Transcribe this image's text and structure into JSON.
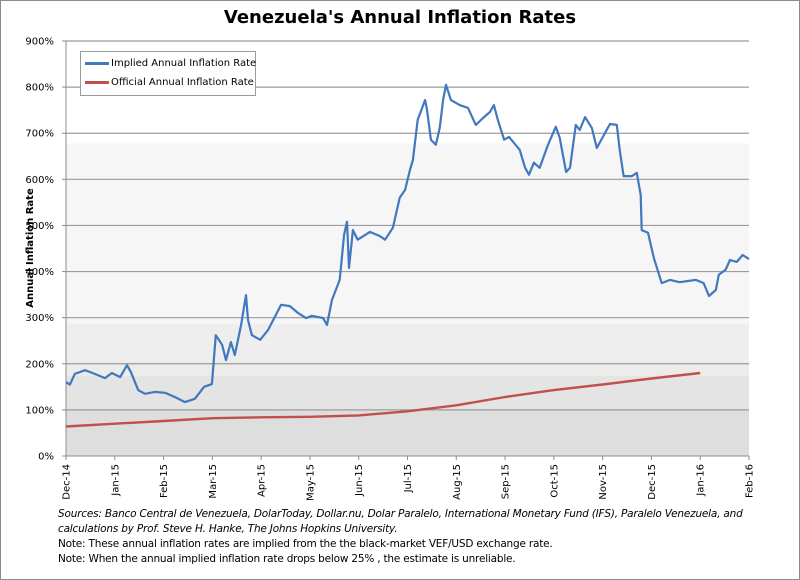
{
  "chart_data": {
    "type": "line",
    "title": "Venezuela's Annual Inflation Rates",
    "xlabel": "",
    "ylabel": "Annual Inflation Rate",
    "ylim": [
      0,
      900
    ],
    "y_ticks": [
      "0%",
      "100%",
      "200%",
      "300%",
      "400%",
      "500%",
      "600%",
      "700%",
      "800%",
      "900%"
    ],
    "y_tick_values": [
      0,
      100,
      200,
      300,
      400,
      500,
      600,
      700,
      800,
      900
    ],
    "x_ticks": [
      "Dec-14",
      "Jan-15",
      "Feb-15",
      "Mar-15",
      "Apr-15",
      "May-15",
      "Jun-15",
      "Jul-15",
      "Aug-15",
      "Sep-15",
      "Oct-15",
      "Nov-15",
      "Dec-15",
      "Jan-16",
      "Feb-16"
    ],
    "xlim_months": [
      0,
      14
    ],
    "grid": true,
    "legend_position": "top-left",
    "series": [
      {
        "name": "Implied Annual Inflation Rate",
        "color": "#4178be",
        "points": [
          [
            0.0,
            160
          ],
          [
            0.08,
            155
          ],
          [
            0.18,
            178
          ],
          [
            0.39,
            186
          ],
          [
            0.59,
            178
          ],
          [
            0.8,
            169
          ],
          [
            0.94,
            180
          ],
          [
            1.11,
            171
          ],
          [
            1.25,
            197
          ],
          [
            1.33,
            182
          ],
          [
            1.48,
            143
          ],
          [
            1.62,
            135
          ],
          [
            1.82,
            139
          ],
          [
            2.03,
            137
          ],
          [
            2.23,
            128
          ],
          [
            2.44,
            117
          ],
          [
            2.64,
            124
          ],
          [
            2.83,
            150
          ],
          [
            2.99,
            156
          ],
          [
            3.07,
            262
          ],
          [
            3.2,
            241
          ],
          [
            3.28,
            208
          ],
          [
            3.38,
            247
          ],
          [
            3.46,
            219
          ],
          [
            3.59,
            284
          ],
          [
            3.69,
            349
          ],
          [
            3.73,
            295
          ],
          [
            3.81,
            262
          ],
          [
            3.98,
            252
          ],
          [
            4.14,
            273
          ],
          [
            4.41,
            328
          ],
          [
            4.59,
            325
          ],
          [
            4.76,
            310
          ],
          [
            4.92,
            299
          ],
          [
            5.04,
            304
          ],
          [
            5.27,
            299
          ],
          [
            5.35,
            284
          ],
          [
            5.45,
            338
          ],
          [
            5.61,
            382
          ],
          [
            5.7,
            480
          ],
          [
            5.76,
            508
          ],
          [
            5.8,
            408
          ],
          [
            5.88,
            490
          ],
          [
            5.98,
            469
          ],
          [
            6.23,
            486
          ],
          [
            6.43,
            477
          ],
          [
            6.54,
            469
          ],
          [
            6.7,
            495
          ],
          [
            6.84,
            560
          ],
          [
            6.95,
            577
          ],
          [
            7.05,
            620
          ],
          [
            7.11,
            642
          ],
          [
            7.21,
            729
          ],
          [
            7.36,
            772
          ],
          [
            7.4,
            751
          ],
          [
            7.48,
            686
          ],
          [
            7.58,
            675
          ],
          [
            7.66,
            711
          ],
          [
            7.73,
            772
          ],
          [
            7.79,
            805
          ],
          [
            7.89,
            772
          ],
          [
            8.07,
            761
          ],
          [
            8.24,
            755
          ],
          [
            8.4,
            718
          ],
          [
            8.55,
            733
          ],
          [
            8.69,
            746
          ],
          [
            8.77,
            761
          ],
          [
            8.85,
            729
          ],
          [
            8.98,
            686
          ],
          [
            9.08,
            692
          ],
          [
            9.3,
            664
          ],
          [
            9.41,
            625
          ],
          [
            9.49,
            610
          ],
          [
            9.59,
            636
          ],
          [
            9.71,
            625
          ],
          [
            9.88,
            675
          ],
          [
            10.04,
            714
          ],
          [
            10.12,
            690
          ],
          [
            10.25,
            616
          ],
          [
            10.33,
            625
          ],
          [
            10.45,
            718
          ],
          [
            10.53,
            707
          ],
          [
            10.64,
            735
          ],
          [
            10.78,
            711
          ],
          [
            10.88,
            668
          ],
          [
            11.05,
            701
          ],
          [
            11.15,
            720
          ],
          [
            11.29,
            718
          ],
          [
            11.35,
            664
          ],
          [
            11.43,
            607
          ],
          [
            11.6,
            607
          ],
          [
            11.7,
            614
          ],
          [
            11.78,
            566
          ],
          [
            11.8,
            490
          ],
          [
            11.93,
            484
          ],
          [
            12.05,
            429
          ],
          [
            12.21,
            375
          ],
          [
            12.38,
            382
          ],
          [
            12.58,
            377
          ],
          [
            12.91,
            382
          ],
          [
            13.07,
            375
          ],
          [
            13.18,
            347
          ],
          [
            13.32,
            360
          ],
          [
            13.38,
            393
          ],
          [
            13.52,
            404
          ],
          [
            13.61,
            425
          ],
          [
            13.75,
            421
          ],
          [
            13.87,
            436
          ],
          [
            14.0,
            427
          ]
        ]
      },
      {
        "name": "Official Annual Inflation Rate",
        "color": "#c0504d",
        "points": [
          [
            0,
            64
          ],
          [
            1,
            70
          ],
          [
            2,
            76
          ],
          [
            3,
            82
          ],
          [
            4,
            84
          ],
          [
            5,
            85
          ],
          [
            6,
            88
          ],
          [
            7,
            97
          ],
          [
            8,
            110
          ],
          [
            9,
            128
          ],
          [
            10,
            143
          ],
          [
            11,
            155
          ],
          [
            12,
            168
          ],
          [
            13,
            180
          ]
        ]
      }
    ],
    "background_bands": [
      {
        "from": 0,
        "to": 100,
        "color": "#dedede"
      },
      {
        "from": 100,
        "to": 175,
        "color": "#e4e4e4"
      },
      {
        "from": 175,
        "to": 205,
        "color": "#ececea"
      },
      {
        "from": 205,
        "to": 287,
        "color": "#eeeeee"
      },
      {
        "from": 287,
        "to": 678,
        "color": "#f6f6f6"
      },
      {
        "from": 678,
        "to": 900,
        "color": "#ffffff"
      }
    ]
  },
  "legend": {
    "implied_label": "Implied Annual Inflation Rate",
    "official_label": "Official Annual Inflation Rate"
  },
  "notes": {
    "sources_line1": "Sources: Banco Central de Venezuela, DolarToday, Dollar.nu, Dolar Paralelo, International Monetary Fund (IFS), Paralelo Venezuela, and",
    "sources_line2": "calculations by Prof. Steve H. Hanke, The Johns Hopkins University.",
    "note1": "Note: These annual inflation rates are implied from the the black-market VEF/USD  exchange rate.",
    "note2": "Note: When the annual implied inflation rate drops below 25% , the estimate is unreliable."
  }
}
